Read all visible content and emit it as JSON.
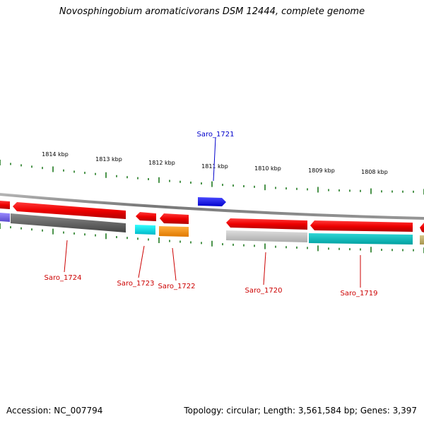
{
  "title": "Novosphingobium aromaticivorans DSM 12444, complete genome",
  "footer": {
    "accession": "Accession: NC_007794",
    "summary": "Topology: circular; Length: 3,561,584 bp; Genes: 3,397"
  },
  "ruler_labels": [
    "1814 kbp",
    "1813 kbp",
    "1812 kbp",
    "1811 kbp",
    "1810 kbp",
    "1809 kbp",
    "1808 kbp"
  ],
  "gene_labels": [
    {
      "text": "Saro_1721",
      "color": "#0000cc"
    },
    {
      "text": "Saro_1724",
      "color": "#cc0000"
    },
    {
      "text": "Saro_1723",
      "color": "#cc0000"
    },
    {
      "text": "Saro_1722",
      "color": "#cc0000"
    },
    {
      "text": "Saro_1720",
      "color": "#cc0000"
    },
    {
      "text": "Saro_1719",
      "color": "#cc0000"
    }
  ],
  "colors": {
    "forward_gene": "#1a1aff",
    "reverse_gene": "#ee0000",
    "backbone": "#888888",
    "tick": "#1f7a1f"
  }
}
